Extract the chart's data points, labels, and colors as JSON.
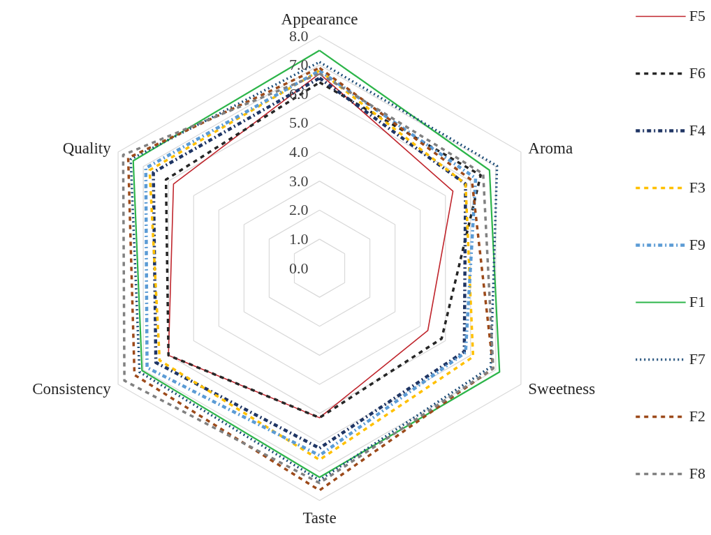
{
  "chart_data": {
    "type": "radar",
    "categories": [
      "Appearance",
      "Aroma",
      "Sweetness",
      "Taste",
      "Consistency",
      "Quality"
    ],
    "ylim": [
      0,
      8
    ],
    "yticks": [
      {
        "value": 0,
        "label": "0.0"
      },
      {
        "value": 1,
        "label": "1.0"
      },
      {
        "value": 2,
        "label": "2.0"
      },
      {
        "value": 3,
        "label": "3.0"
      },
      {
        "value": 4,
        "label": "4.0"
      },
      {
        "value": 5,
        "label": "5.0"
      },
      {
        "value": 6,
        "label": "6.0"
      },
      {
        "value": 7,
        "label": "7.0"
      },
      {
        "value": 8,
        "label": "8.0"
      }
    ],
    "grid": true,
    "legend": "right",
    "marker": "none",
    "series": [
      {
        "name": "F5",
        "color": "#c0262d",
        "line_style": "solid",
        "values": [
          6.7,
          5.3,
          4.3,
          5.15,
          6.0,
          5.8
        ]
      },
      {
        "name": "F6",
        "color": "#262626",
        "line_style": "dashed",
        "values": [
          6.4,
          6.4,
          4.85,
          5.15,
          6.0,
          6.1
        ]
      },
      {
        "name": "F4",
        "color": "#1f3564",
        "line_style": "dashdot",
        "values": [
          6.55,
          5.8,
          5.75,
          6.2,
          6.5,
          6.6
        ]
      },
      {
        "name": "F3",
        "color": "#ffc000",
        "line_style": "dashed",
        "values": [
          6.8,
          5.8,
          6.1,
          6.6,
          6.35,
          6.75
        ]
      },
      {
        "name": "F9",
        "color": "#5b9bd5",
        "line_style": "dashdot",
        "values": [
          6.8,
          6.2,
          5.8,
          6.45,
          6.85,
          6.9
        ]
      },
      {
        "name": "F1",
        "color": "#2db54a",
        "line_style": "solid",
        "values": [
          7.5,
          6.75,
          7.15,
          7.2,
          7.05,
          7.4
        ]
      },
      {
        "name": "F7",
        "color": "#1f4e79",
        "line_style": "dotted",
        "values": [
          7.1,
          7.05,
          6.8,
          7.3,
          7.15,
          7.5
        ]
      },
      {
        "name": "F2",
        "color": "#9c4a1a",
        "line_style": "dashed",
        "values": [
          6.9,
          6.05,
          6.9,
          7.65,
          7.35,
          7.6
        ]
      },
      {
        "name": "F8",
        "color": "#808080",
        "line_style": "dashed",
        "values": [
          6.7,
          6.5,
          6.9,
          7.4,
          7.75,
          7.8
        ]
      }
    ]
  }
}
